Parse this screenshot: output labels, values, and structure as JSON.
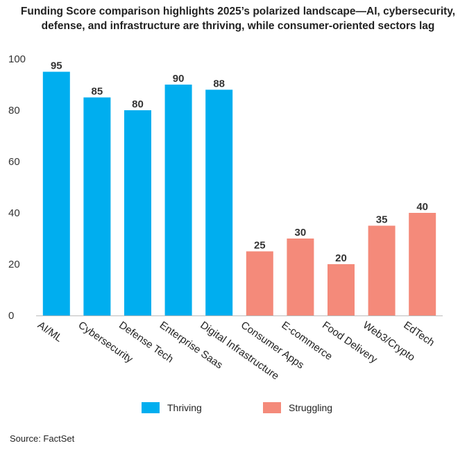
{
  "title_line1": "Funding Score comparison highlights 2025’s polarized landscape—AI, cybersecurity,",
  "title_line2": "defense, and infrastructure are thriving, while consumer-oriented sectors lag",
  "source": "Source: FactSet",
  "colors": {
    "thriving": "#00AEEF",
    "struggling": "#F48A7A",
    "grid": "#dddddd",
    "axis": "#bbbbbb"
  },
  "legend": [
    {
      "label": "Thriving",
      "color": "#00AEEF"
    },
    {
      "label": "Struggling",
      "color": "#F48A7A"
    }
  ],
  "chart_data": {
    "type": "bar",
    "title": "Funding Score comparison highlights 2025’s polarized landscape—AI, cybersecurity, defense, and infrastructure are thriving, while consumer-oriented sectors lag",
    "xlabel": "",
    "ylabel": "",
    "ylim": [
      0,
      100
    ],
    "yticks": [
      0,
      20,
      40,
      60,
      80,
      100
    ],
    "grid": false,
    "legend_position": "bottom",
    "categories": [
      "AI/ML",
      "Cybersecurity",
      "Defense Tech",
      "Enterprise Saas",
      "Digital Infrastructure",
      "Consumer Apps",
      "E-commerce",
      "Food Delivery",
      "Web3/Crypto",
      "EdTech"
    ],
    "values": [
      95,
      85,
      80,
      90,
      88,
      25,
      30,
      20,
      35,
      40
    ],
    "groups": [
      "Thriving",
      "Thriving",
      "Thriving",
      "Thriving",
      "Thriving",
      "Struggling",
      "Struggling",
      "Struggling",
      "Struggling",
      "Struggling"
    ]
  }
}
